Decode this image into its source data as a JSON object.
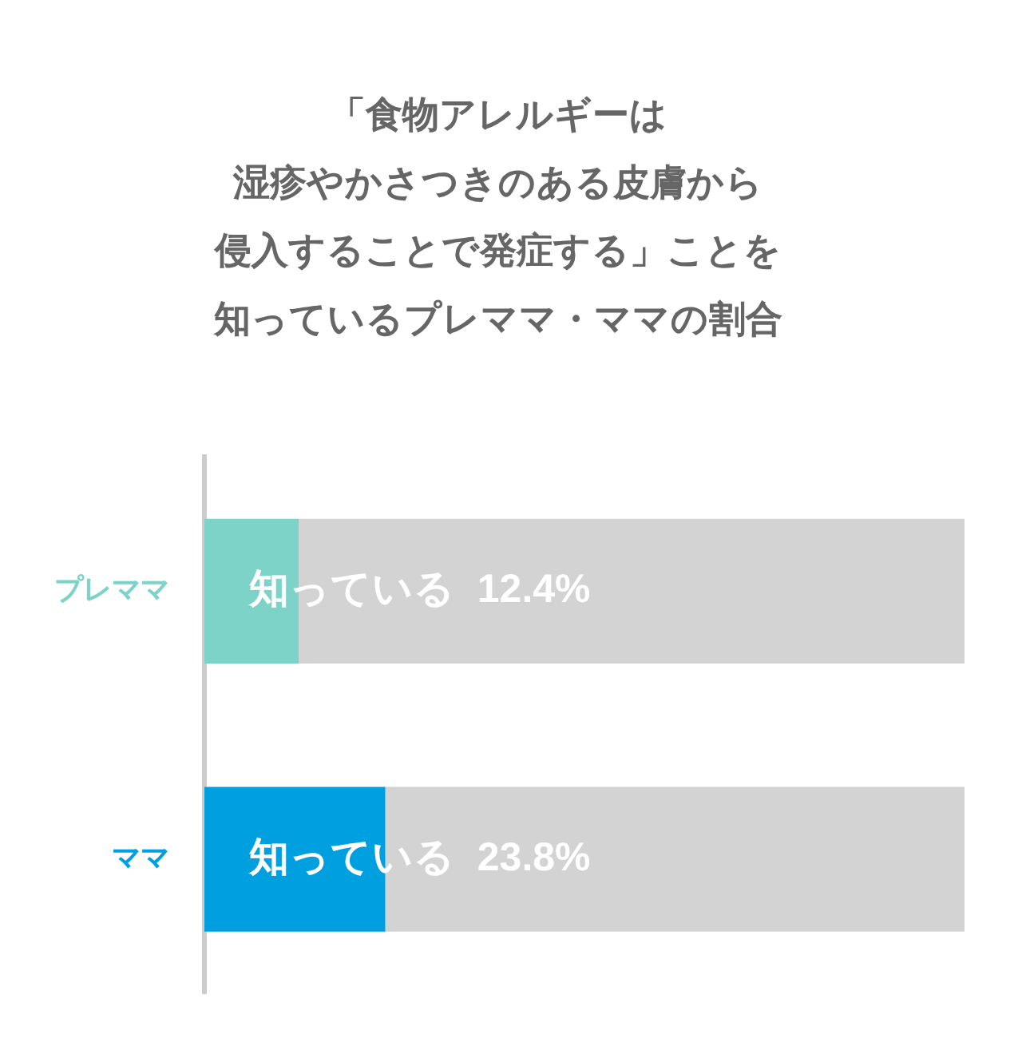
{
  "chart_data": {
    "type": "bar",
    "orientation": "horizontal",
    "stacked": true,
    "title": [
      "「食物アレルギーは",
      "湿疹やかさつきのある皮膚から",
      "侵入することで発症する」ことを",
      "知っているプレママ・ママの割合"
    ],
    "categories": [
      "プレママ",
      "ママ"
    ],
    "series": [
      {
        "colors": [
          "#7dd3c8",
          "#00a0e0"
        ],
        "values": [
          12.4,
          23.8
        ],
        "value_labels": [
          "知っている  12.4%",
          "知っている  23.8%"
        ]
      },
      {
        "color": "#d3d3d3",
        "values": [
          87.6,
          76.2
        ]
      }
    ],
    "xlim": [
      0,
      100
    ],
    "tick_labels": "y",
    "legend": false
  }
}
